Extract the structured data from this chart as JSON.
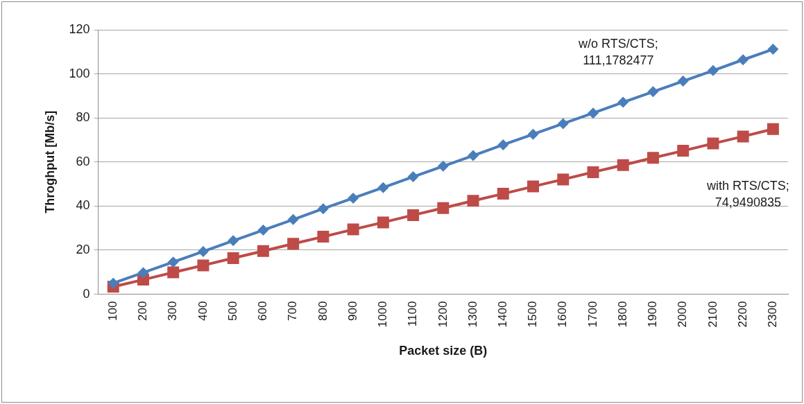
{
  "chart_data": {
    "type": "line",
    "xlabel": "Packet size (B)",
    "ylabel": "Throghput [Mb/s]",
    "categories": [
      "100",
      "200",
      "300",
      "400",
      "500",
      "600",
      "700",
      "800",
      "900",
      "1000",
      "1100",
      "1200",
      "1300",
      "1400",
      "1500",
      "1600",
      "1700",
      "1800",
      "1900",
      "2000",
      "2100",
      "2200",
      "2300"
    ],
    "series": [
      {
        "color": "#4a7ebb",
        "marker": "diamond",
        "values": [
          5.0,
          9.8,
          14.6,
          19.4,
          24.3,
          29.1,
          33.9,
          38.8,
          43.6,
          48.4,
          53.3,
          58.1,
          62.9,
          67.8,
          72.6,
          77.4,
          82.2,
          87.1,
          91.9,
          96.7,
          101.5,
          106.4,
          111.1782477
        ]
      },
      {
        "color": "#be4b48",
        "marker": "square",
        "values": [
          3.4,
          6.6,
          9.9,
          13.1,
          16.4,
          19.6,
          22.9,
          26.1,
          29.4,
          32.6,
          35.9,
          39.1,
          42.4,
          45.6,
          48.9,
          52.1,
          55.4,
          58.6,
          61.9,
          65.1,
          68.4,
          71.6,
          74.9490835
        ]
      }
    ],
    "annotations": [
      "w/o RTS/CTS; 111,1782477",
      "with RTS/CTS; 74,9490835"
    ],
    "ylim": [
      0,
      120
    ],
    "yticks": [
      0,
      20,
      40,
      60,
      80,
      100,
      120
    ],
    "grid": "y",
    "legend": false,
    "line_style": "solid"
  }
}
